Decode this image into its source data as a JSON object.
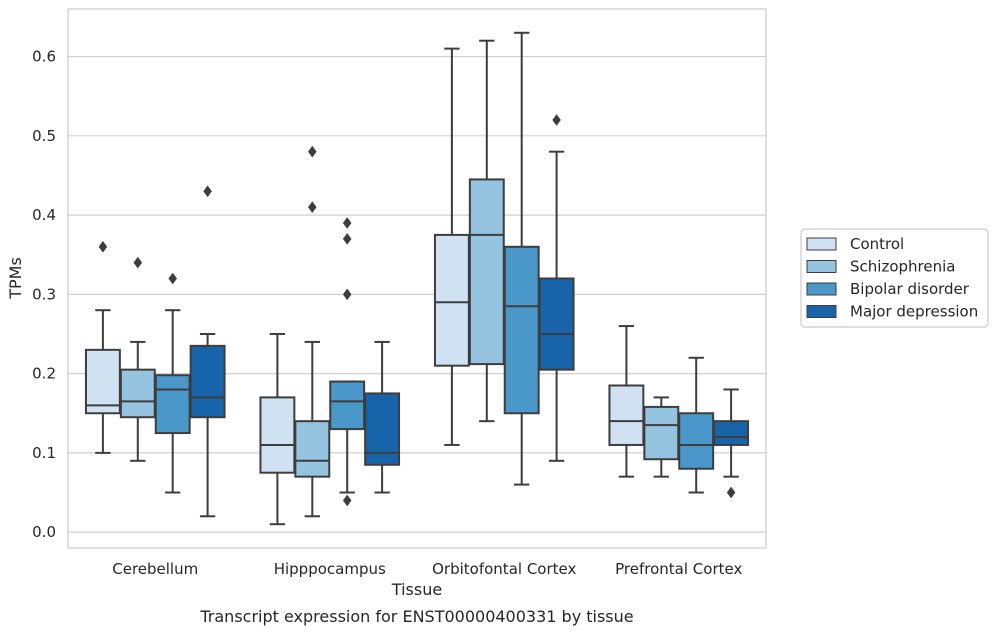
{
  "chart_data": {
    "type": "box",
    "xlabel": "Tissue",
    "ylabel": "TPMs",
    "caption": "Transcript expression for ENST00000400331 by tissue",
    "ylim": [
      -0.02,
      0.66
    ],
    "yticks": [
      "0.0",
      "0.1",
      "0.2",
      "0.3",
      "0.4",
      "0.5",
      "0.6"
    ],
    "grid": "horizontal",
    "legend_placement": "right",
    "categories": [
      "Cerebellum",
      "Hipppocampus",
      "Orbitofontal Cortex",
      "Prefrontal Cortex"
    ],
    "series": [
      {
        "name": "Control",
        "color": "#d0e1f2",
        "boxes": [
          {
            "whislo": 0.1,
            "q1": 0.15,
            "med": 0.16,
            "q3": 0.23,
            "whishi": 0.28,
            "fliers": [
              0.36
            ]
          },
          {
            "whislo": 0.01,
            "q1": 0.075,
            "med": 0.11,
            "q3": 0.17,
            "whishi": 0.25,
            "fliers": []
          },
          {
            "whislo": 0.11,
            "q1": 0.21,
            "med": 0.29,
            "q3": 0.375,
            "whishi": 0.61,
            "fliers": []
          },
          {
            "whislo": 0.07,
            "q1": 0.11,
            "med": 0.14,
            "q3": 0.185,
            "whishi": 0.26,
            "fliers": []
          }
        ]
      },
      {
        "name": "Schizophrenia",
        "color": "#94c4df",
        "boxes": [
          {
            "whislo": 0.09,
            "q1": 0.145,
            "med": 0.165,
            "q3": 0.205,
            "whishi": 0.24,
            "fliers": [
              0.34
            ]
          },
          {
            "whislo": 0.02,
            "q1": 0.07,
            "med": 0.09,
            "q3": 0.14,
            "whishi": 0.24,
            "fliers": [
              0.41,
              0.48
            ]
          },
          {
            "whislo": 0.14,
            "q1": 0.212,
            "med": 0.375,
            "q3": 0.445,
            "whishi": 0.62,
            "fliers": []
          },
          {
            "whislo": 0.07,
            "q1": 0.092,
            "med": 0.135,
            "q3": 0.158,
            "whishi": 0.17,
            "fliers": []
          }
        ]
      },
      {
        "name": "Bipolar disorder",
        "color": "#4a98c9",
        "boxes": [
          {
            "whislo": 0.05,
            "q1": 0.125,
            "med": 0.18,
            "q3": 0.198,
            "whishi": 0.28,
            "fliers": [
              0.32
            ]
          },
          {
            "whislo": 0.05,
            "q1": 0.13,
            "med": 0.165,
            "q3": 0.19,
            "whishi": 0.19,
            "fliers": [
              0.04,
              0.3,
              0.37,
              0.39
            ]
          },
          {
            "whislo": 0.06,
            "q1": 0.15,
            "med": 0.285,
            "q3": 0.36,
            "whishi": 0.63,
            "fliers": []
          },
          {
            "whislo": 0.05,
            "q1": 0.08,
            "med": 0.11,
            "q3": 0.15,
            "whishi": 0.22,
            "fliers": []
          }
        ]
      },
      {
        "name": "Major depression",
        "color": "#1764ab",
        "boxes": [
          {
            "whislo": 0.02,
            "q1": 0.145,
            "med": 0.17,
            "q3": 0.235,
            "whishi": 0.25,
            "fliers": [
              0.43
            ]
          },
          {
            "whislo": 0.05,
            "q1": 0.085,
            "med": 0.1,
            "q3": 0.175,
            "whishi": 0.24,
            "fliers": []
          },
          {
            "whislo": 0.09,
            "q1": 0.205,
            "med": 0.25,
            "q3": 0.32,
            "whishi": 0.48,
            "fliers": [
              0.52
            ]
          },
          {
            "whislo": 0.07,
            "q1": 0.11,
            "med": 0.12,
            "q3": 0.14,
            "whishi": 0.18,
            "fliers": [
              0.05
            ]
          }
        ]
      }
    ]
  }
}
